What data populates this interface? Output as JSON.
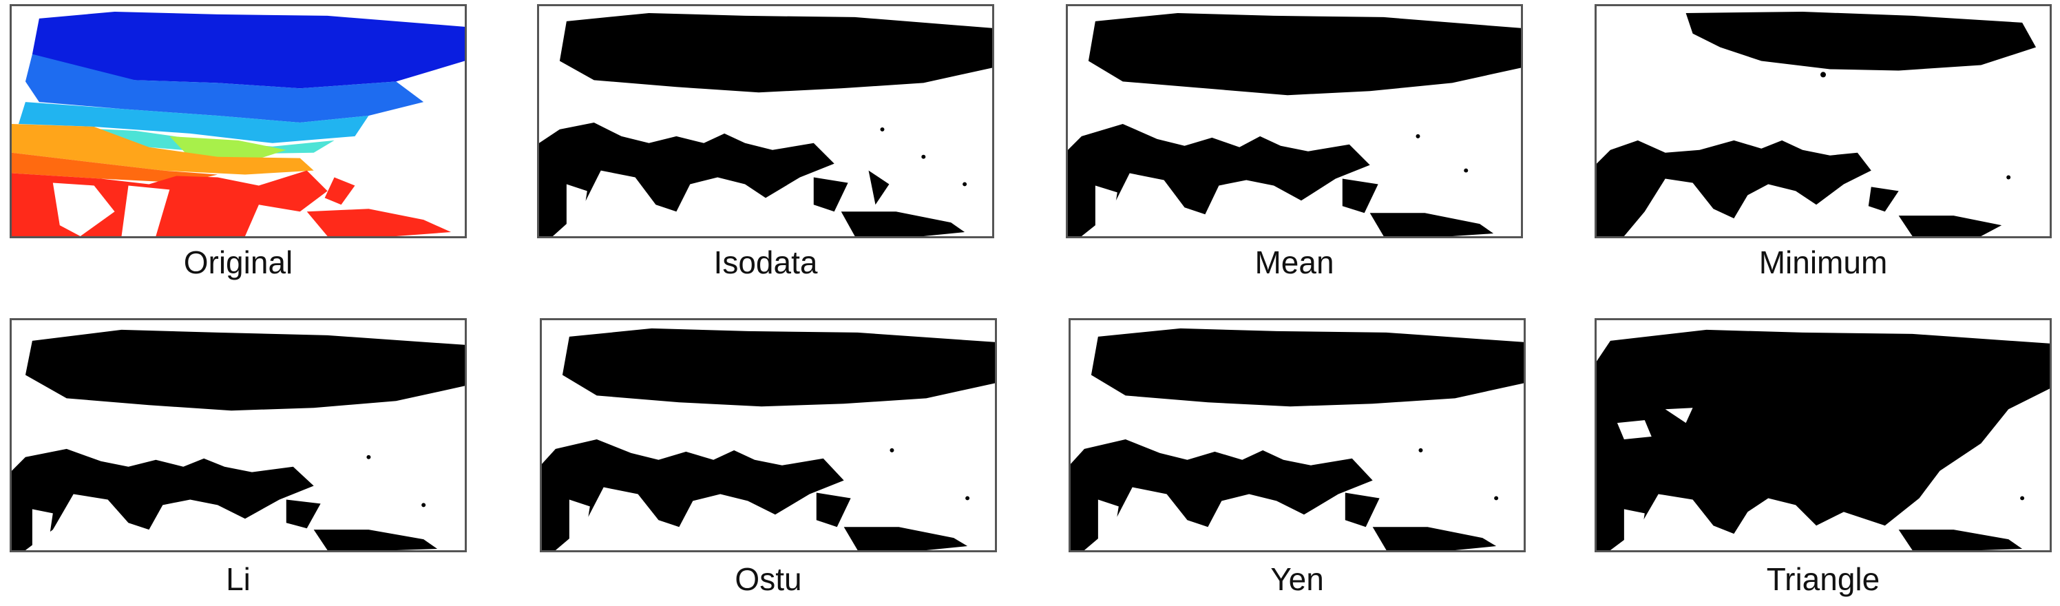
{
  "figure": {
    "panels": [
      {
        "id": "original",
        "label": "Original",
        "style": "color"
      },
      {
        "id": "isodata",
        "label": "Isodata",
        "style": "binary"
      },
      {
        "id": "mean",
        "label": "Mean",
        "style": "binary"
      },
      {
        "id": "minimum",
        "label": "Minimum",
        "style": "binary-light"
      },
      {
        "id": "li",
        "label": "Li",
        "style": "binary"
      },
      {
        "id": "ostu",
        "label": "Ostu",
        "style": "binary"
      },
      {
        "id": "yen",
        "label": "Yen",
        "style": "binary"
      },
      {
        "id": "triangle",
        "label": "Triangle",
        "style": "binary-heavy"
      }
    ]
  },
  "colors": {
    "frame": "#555555",
    "foreground": "#000000",
    "background": "#ffffff",
    "palette": [
      "#0a1ee0",
      "#1e6cf0",
      "#21b4f0",
      "#4de3d6",
      "#a8f04a",
      "#ffa51a",
      "#ff6a10",
      "#ff2a1a"
    ]
  }
}
